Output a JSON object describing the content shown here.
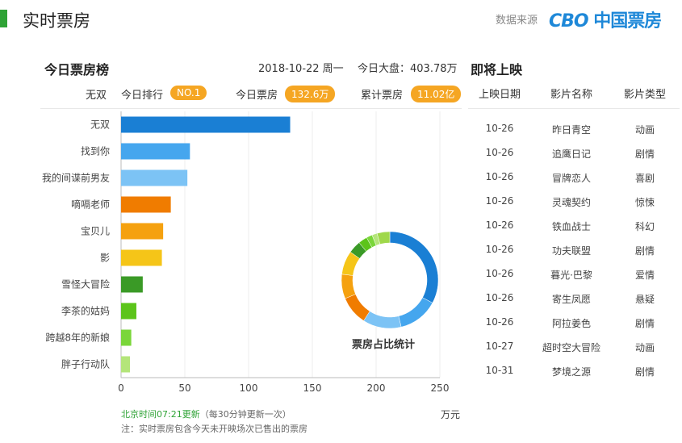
{
  "header": {
    "title": "实时票房",
    "source_label": "数据来源",
    "brand_cbo": "CBO",
    "brand_cn": "中国票房",
    "accent_color": "#2fa336"
  },
  "today": {
    "section_title": "今日票房榜",
    "date": "2018-10-22 周一",
    "market_label": "今日大盘：",
    "market_value": "403.78万",
    "top_film": "无双",
    "rank_label": "今日排行",
    "rank_value": "NO.1",
    "box_label": "今日票房",
    "box_value": "132.6万",
    "total_label": "累计票房",
    "total_value": "11.02亿"
  },
  "upcoming": {
    "section_title": "即将上映",
    "columns": [
      "上映日期",
      "影片名称",
      "影片类型"
    ],
    "rows": [
      [
        "10-26",
        "昨日青空",
        "动画"
      ],
      [
        "10-26",
        "追鹰日记",
        "剧情"
      ],
      [
        "10-26",
        "冒牌恋人",
        "喜剧"
      ],
      [
        "10-26",
        "灵魂契约",
        "惊悚"
      ],
      [
        "10-26",
        "铁血战士",
        "科幻"
      ],
      [
        "10-26",
        "功夫联盟",
        "剧情"
      ],
      [
        "10-26",
        "暮光·巴黎",
        "爱情"
      ],
      [
        "10-26",
        "寄生凤愿",
        "悬疑"
      ],
      [
        "10-26",
        "阿拉姜色",
        "剧情"
      ],
      [
        "10-27",
        "超时空大冒险",
        "动画"
      ],
      [
        "10-31",
        "梦境之源",
        "剧情"
      ]
    ]
  },
  "chart_data": [
    {
      "type": "bar",
      "orientation": "horizontal",
      "categories": [
        "无双",
        "找到你",
        "我的间谍前男友",
        "嘀嗝老师",
        "宝贝儿",
        "影",
        "雪怪大冒险",
        "李茶的姑妈",
        "跨越8年的新娘",
        "胖子行动队"
      ],
      "values": [
        132.6,
        54,
        52,
        39,
        33,
        32,
        17,
        12,
        8,
        7
      ],
      "colors": [
        "#1a7fd4",
        "#45a6ee",
        "#7cc3f5",
        "#f07c00",
        "#f5a10f",
        "#f5c518",
        "#3a9a26",
        "#5cc41a",
        "#7ad63a",
        "#b4e57a"
      ],
      "xticks": [
        0,
        50,
        100,
        150,
        200,
        250
      ],
      "xlim": [
        0,
        250
      ],
      "unit": "万元",
      "grid": true
    },
    {
      "type": "pie",
      "style": "donut",
      "title": "票房占比统计",
      "values": [
        132.6,
        54,
        52,
        39,
        33,
        32,
        17,
        12,
        8,
        7,
        17.18
      ],
      "colors": [
        "#1a7fd4",
        "#45a6ee",
        "#7cc3f5",
        "#f07c00",
        "#f5a10f",
        "#f5c518",
        "#3a9a26",
        "#5cc41a",
        "#7ad63a",
        "#b4e57a",
        "#9fd84a"
      ]
    }
  ],
  "notes": {
    "update_time": "北京时间07:21更新",
    "update_freq": "（每30分钟更新一次）",
    "footer": "注：实时票房包含今天未开映场次已售出的票房"
  }
}
